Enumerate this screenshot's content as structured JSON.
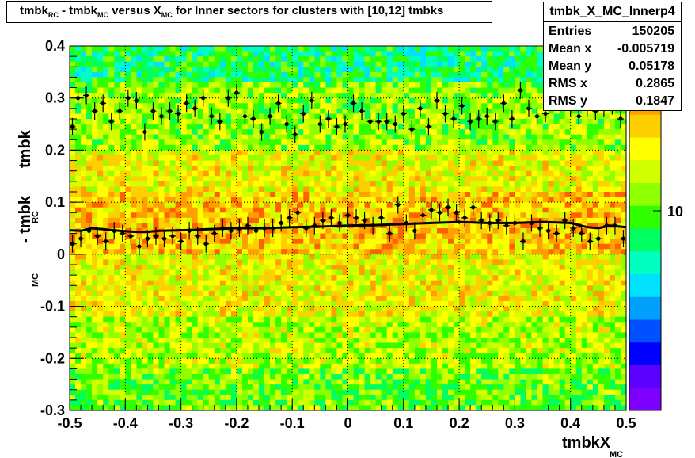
{
  "title": {
    "main": "tmbk",
    "sub1": "RC",
    "part2": "- tmbk",
    "sub2": "MC",
    "part3": "versus X",
    "sub3": "MC",
    "part4": "for Inner sectors for clusters with [10,12] tmbks"
  },
  "stats": {
    "name": "tmbk_X_MC_Innerp4",
    "rows": [
      {
        "label": "Entries",
        "value": "150205"
      },
      {
        "label": "Mean x",
        "value": "-0.005719"
      },
      {
        "label": "Mean y",
        "value": "0.05178"
      },
      {
        "label": "RMS x",
        "value": "0.2865"
      },
      {
        "label": "RMS y",
        "value": "0.1847"
      }
    ]
  },
  "chart_data": {
    "type": "heatmap",
    "xlabel_main": "tmbkX",
    "xlabel_sub": "MC",
    "ylabel_main": "tmbk",
    "ylabel_sub1": "RC",
    "ylabel_mid": "- tmbk",
    "ylabel_sub2": "MC",
    "xlim": [
      -0.5,
      0.5
    ],
    "ylim": [
      -0.3,
      0.4
    ],
    "xticks": [
      "-0.5",
      "-0.4",
      "-0.3",
      "-0.2",
      "-0.1",
      "0",
      "0.1",
      "0.2",
      "0.3",
      "0.4",
      "0.5"
    ],
    "yticks": [
      "-0.3",
      "-0.2",
      "-0.1",
      "0",
      "0.1",
      "0.2",
      "0.3",
      "0.4"
    ],
    "colorbar_label": "10",
    "grid": true,
    "palette": [
      "#7f00ff",
      "#5a00ff",
      "#0000ff",
      "#0050ff",
      "#00a0ff",
      "#00e0ff",
      "#00ffc0",
      "#00ff60",
      "#30ff00",
      "#90ff00",
      "#d0ff00",
      "#ffff00",
      "#ffd000",
      "#ffa000",
      "#ff6000",
      "#ff2000"
    ],
    "high_band_points": [
      {
        "x": -0.495,
        "y": 0.245
      },
      {
        "x": -0.485,
        "y": 0.3
      },
      {
        "x": -0.47,
        "y": 0.305
      },
      {
        "x": -0.455,
        "y": 0.275
      },
      {
        "x": -0.44,
        "y": 0.29
      },
      {
        "x": -0.425,
        "y": 0.255
      },
      {
        "x": -0.41,
        "y": 0.275
      },
      {
        "x": -0.395,
        "y": 0.3
      },
      {
        "x": -0.38,
        "y": 0.295
      },
      {
        "x": -0.365,
        "y": 0.235
      },
      {
        "x": -0.35,
        "y": 0.275
      },
      {
        "x": -0.335,
        "y": 0.265
      },
      {
        "x": -0.32,
        "y": 0.275
      },
      {
        "x": -0.305,
        "y": 0.27
      },
      {
        "x": -0.29,
        "y": 0.29
      },
      {
        "x": -0.275,
        "y": 0.28
      },
      {
        "x": -0.26,
        "y": 0.3
      },
      {
        "x": -0.245,
        "y": 0.265
      },
      {
        "x": -0.23,
        "y": 0.255
      },
      {
        "x": -0.215,
        "y": 0.3
      },
      {
        "x": -0.2,
        "y": 0.31
      },
      {
        "x": -0.185,
        "y": 0.265
      },
      {
        "x": -0.17,
        "y": 0.26
      },
      {
        "x": -0.155,
        "y": 0.235
      },
      {
        "x": -0.14,
        "y": 0.265
      },
      {
        "x": -0.125,
        "y": 0.29
      },
      {
        "x": -0.11,
        "y": 0.25
      },
      {
        "x": -0.095,
        "y": 0.23
      },
      {
        "x": -0.08,
        "y": 0.27
      },
      {
        "x": -0.065,
        "y": 0.295
      },
      {
        "x": -0.05,
        "y": 0.25
      },
      {
        "x": -0.035,
        "y": 0.26
      },
      {
        "x": -0.02,
        "y": 0.245
      },
      {
        "x": -0.005,
        "y": 0.25
      },
      {
        "x": 0.01,
        "y": 0.29
      },
      {
        "x": 0.025,
        "y": 0.275
      },
      {
        "x": 0.04,
        "y": 0.255
      },
      {
        "x": 0.055,
        "y": 0.255
      },
      {
        "x": 0.07,
        "y": 0.255
      },
      {
        "x": 0.085,
        "y": 0.25
      },
      {
        "x": 0.1,
        "y": 0.27
      },
      {
        "x": 0.115,
        "y": 0.24
      },
      {
        "x": 0.13,
        "y": 0.28
      },
      {
        "x": 0.145,
        "y": 0.245
      },
      {
        "x": 0.16,
        "y": 0.295
      },
      {
        "x": 0.175,
        "y": 0.27
      },
      {
        "x": 0.19,
        "y": 0.26
      },
      {
        "x": 0.205,
        "y": 0.285
      },
      {
        "x": 0.22,
        "y": 0.255
      },
      {
        "x": 0.235,
        "y": 0.26
      },
      {
        "x": 0.25,
        "y": 0.265
      },
      {
        "x": 0.265,
        "y": 0.255
      },
      {
        "x": 0.28,
        "y": 0.29
      },
      {
        "x": 0.295,
        "y": 0.26
      },
      {
        "x": 0.31,
        "y": 0.315
      },
      {
        "x": 0.325,
        "y": 0.28
      },
      {
        "x": 0.34,
        "y": 0.265
      },
      {
        "x": 0.355,
        "y": 0.27
      },
      {
        "x": 0.37,
        "y": 0.3
      },
      {
        "x": 0.385,
        "y": 0.31
      },
      {
        "x": 0.4,
        "y": 0.28
      },
      {
        "x": 0.415,
        "y": 0.265
      },
      {
        "x": 0.43,
        "y": 0.28
      },
      {
        "x": 0.445,
        "y": 0.275
      },
      {
        "x": 0.46,
        "y": 0.28
      },
      {
        "x": 0.475,
        "y": 0.285
      },
      {
        "x": 0.49,
        "y": 0.26
      }
    ],
    "low_band_points": [
      {
        "x": -0.495,
        "y": 0.02
      },
      {
        "x": -0.48,
        "y": 0.03
      },
      {
        "x": -0.465,
        "y": 0.045
      },
      {
        "x": -0.45,
        "y": 0.035
      },
      {
        "x": -0.435,
        "y": 0.025
      },
      {
        "x": -0.42,
        "y": 0.045
      },
      {
        "x": -0.405,
        "y": 0.04
      },
      {
        "x": -0.39,
        "y": 0.035
      },
      {
        "x": -0.375,
        "y": 0.015
      },
      {
        "x": -0.36,
        "y": 0.03
      },
      {
        "x": -0.345,
        "y": 0.035
      },
      {
        "x": -0.33,
        "y": 0.03
      },
      {
        "x": -0.315,
        "y": 0.035
      },
      {
        "x": -0.3,
        "y": 0.025
      },
      {
        "x": -0.285,
        "y": 0.045
      },
      {
        "x": -0.27,
        "y": 0.035
      },
      {
        "x": -0.255,
        "y": 0.02
      },
      {
        "x": -0.24,
        "y": 0.04
      },
      {
        "x": -0.225,
        "y": 0.05
      },
      {
        "x": -0.21,
        "y": 0.045
      },
      {
        "x": -0.195,
        "y": 0.05
      },
      {
        "x": -0.18,
        "y": 0.055
      },
      {
        "x": -0.165,
        "y": 0.045
      },
      {
        "x": -0.15,
        "y": 0.05
      },
      {
        "x": -0.135,
        "y": 0.05
      },
      {
        "x": -0.12,
        "y": 0.06
      },
      {
        "x": -0.105,
        "y": 0.07
      },
      {
        "x": -0.09,
        "y": 0.08
      },
      {
        "x": -0.075,
        "y": 0.05
      },
      {
        "x": -0.06,
        "y": 0.055
      },
      {
        "x": -0.045,
        "y": 0.065
      },
      {
        "x": -0.03,
        "y": 0.07
      },
      {
        "x": -0.015,
        "y": 0.06
      },
      {
        "x": 0.0,
        "y": 0.075
      },
      {
        "x": 0.015,
        "y": 0.07
      },
      {
        "x": 0.03,
        "y": 0.065
      },
      {
        "x": 0.045,
        "y": 0.055
      },
      {
        "x": 0.06,
        "y": 0.07
      },
      {
        "x": 0.075,
        "y": 0.04
      },
      {
        "x": 0.09,
        "y": 0.095
      },
      {
        "x": 0.105,
        "y": 0.06
      },
      {
        "x": 0.12,
        "y": 0.045
      },
      {
        "x": 0.135,
        "y": 0.075
      },
      {
        "x": 0.15,
        "y": 0.085
      },
      {
        "x": 0.165,
        "y": 0.08
      },
      {
        "x": 0.18,
        "y": 0.09
      },
      {
        "x": 0.195,
        "y": 0.08
      },
      {
        "x": 0.21,
        "y": 0.07
      },
      {
        "x": 0.225,
        "y": 0.09
      },
      {
        "x": 0.24,
        "y": 0.065
      },
      {
        "x": 0.255,
        "y": 0.06
      },
      {
        "x": 0.27,
        "y": 0.065
      },
      {
        "x": 0.285,
        "y": 0.055
      },
      {
        "x": 0.3,
        "y": 0.06
      },
      {
        "x": 0.315,
        "y": 0.025
      },
      {
        "x": 0.33,
        "y": 0.06
      },
      {
        "x": 0.345,
        "y": 0.05
      },
      {
        "x": 0.36,
        "y": 0.045
      },
      {
        "x": 0.375,
        "y": 0.04
      },
      {
        "x": 0.39,
        "y": 0.065
      },
      {
        "x": 0.405,
        "y": 0.05
      },
      {
        "x": 0.42,
        "y": 0.04
      },
      {
        "x": 0.435,
        "y": 0.025
      },
      {
        "x": 0.45,
        "y": 0.03
      },
      {
        "x": 0.465,
        "y": 0.055
      },
      {
        "x": 0.48,
        "y": 0.055
      },
      {
        "x": 0.495,
        "y": 0.03
      }
    ],
    "profile_curve": [
      {
        "x": -0.5,
        "y": 0.046
      },
      {
        "x": -0.48,
        "y": 0.045
      },
      {
        "x": -0.46,
        "y": 0.05
      },
      {
        "x": -0.44,
        "y": 0.048
      },
      {
        "x": -0.42,
        "y": 0.046
      },
      {
        "x": -0.4,
        "y": 0.044
      },
      {
        "x": -0.38,
        "y": 0.043
      },
      {
        "x": -0.36,
        "y": 0.043
      },
      {
        "x": -0.34,
        "y": 0.045
      },
      {
        "x": -0.3,
        "y": 0.046
      },
      {
        "x": -0.25,
        "y": 0.048
      },
      {
        "x": -0.2,
        "y": 0.05
      },
      {
        "x": -0.15,
        "y": 0.05
      },
      {
        "x": -0.1,
        "y": 0.052
      },
      {
        "x": -0.05,
        "y": 0.053
      },
      {
        "x": 0.0,
        "y": 0.055
      },
      {
        "x": 0.05,
        "y": 0.056
      },
      {
        "x": 0.1,
        "y": 0.058
      },
      {
        "x": 0.15,
        "y": 0.06
      },
      {
        "x": 0.2,
        "y": 0.062
      },
      {
        "x": 0.25,
        "y": 0.06
      },
      {
        "x": 0.3,
        "y": 0.06
      },
      {
        "x": 0.35,
        "y": 0.062
      },
      {
        "x": 0.4,
        "y": 0.06
      },
      {
        "x": 0.43,
        "y": 0.052
      },
      {
        "x": 0.45,
        "y": 0.05
      },
      {
        "x": 0.47,
        "y": 0.055
      },
      {
        "x": 0.5,
        "y": 0.052
      }
    ]
  }
}
